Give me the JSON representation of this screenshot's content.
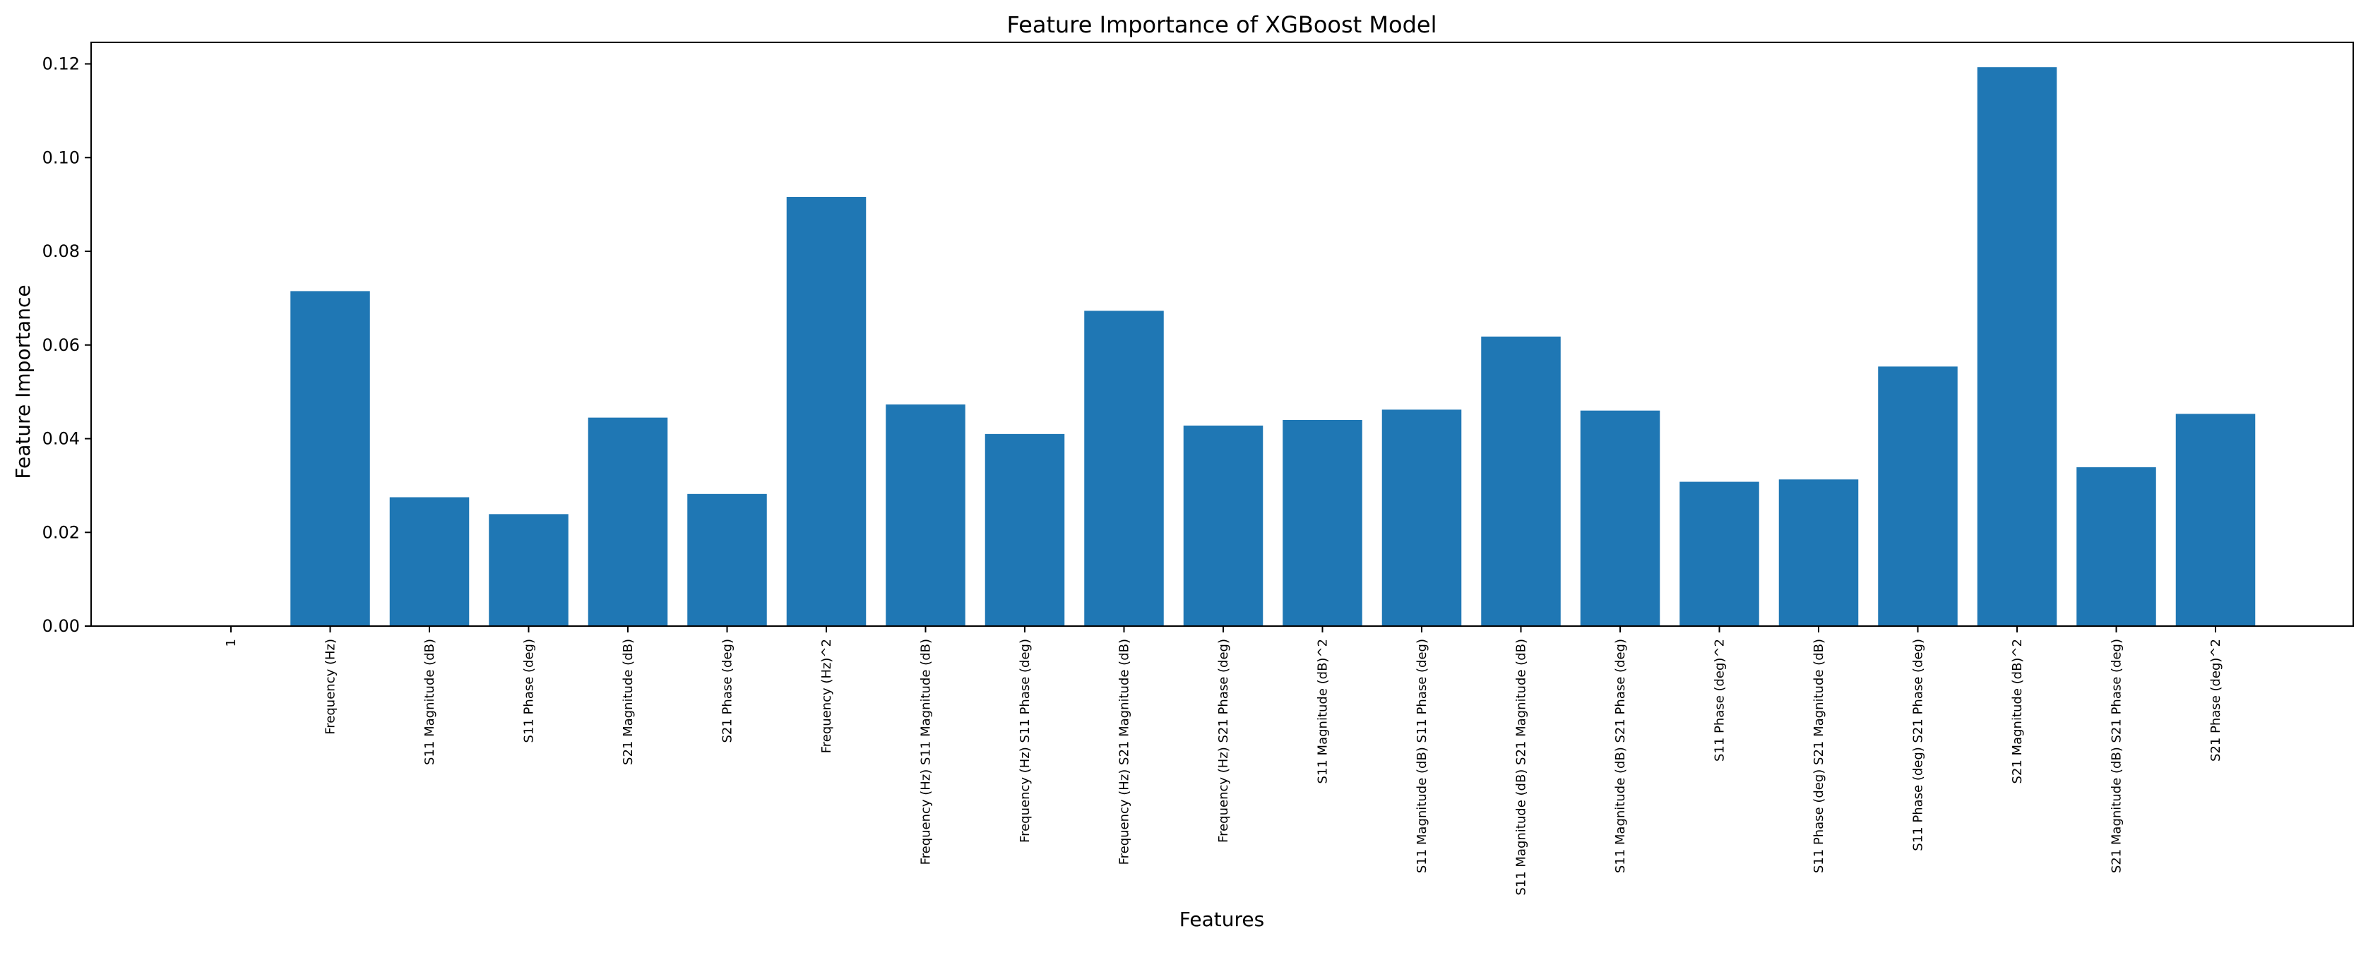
{
  "chart_data": {
    "type": "bar",
    "title": "Feature Importance of XGBoost Model",
    "xlabel": "Features",
    "ylabel": "Feature Importance",
    "ylim": [
      0,
      0.1246
    ],
    "yticks": [
      "0.00",
      "0.02",
      "0.04",
      "0.06",
      "0.08",
      "0.10",
      "0.12"
    ],
    "ytick_values": [
      0,
      0.02,
      0.04,
      0.06,
      0.08,
      0.1,
      0.12
    ],
    "grid": false,
    "bar_color": "#1f77b4",
    "categories": [
      "1",
      "Frequency (Hz)",
      "S11 Magnitude (dB)",
      "S11 Phase (deg)",
      "S21 Magnitude (dB)",
      "S21 Phase (deg)",
      "Frequency (Hz)^2",
      "Frequency (Hz) S11 Magnitude (dB)",
      "Frequency (Hz) S11 Phase (deg)",
      "Frequency (Hz) S21 Magnitude (dB)",
      "Frequency (Hz) S21 Phase (deg)",
      "S11 Magnitude (dB)^2",
      "S11 Magnitude (dB) S11 Phase (deg)",
      "S11 Magnitude (dB) S21 Magnitude (dB)",
      "S11 Magnitude (dB) S21 Phase (deg)",
      "S11 Phase (deg)^2",
      "S11 Phase (deg) S21 Magnitude (dB)",
      "S11 Phase (deg) S21 Phase (deg)",
      "S21 Magnitude (dB)^2",
      "S21 Magnitude (dB) S21 Phase (deg)",
      "S21 Phase (deg)^2"
    ],
    "values": [
      0.0,
      0.0715,
      0.0275,
      0.0239,
      0.0445,
      0.0282,
      0.0916,
      0.0473,
      0.041,
      0.0673,
      0.0428,
      0.044,
      0.0462,
      0.0618,
      0.046,
      0.0308,
      0.0313,
      0.0554,
      0.1193,
      0.0339,
      0.0453
    ]
  }
}
